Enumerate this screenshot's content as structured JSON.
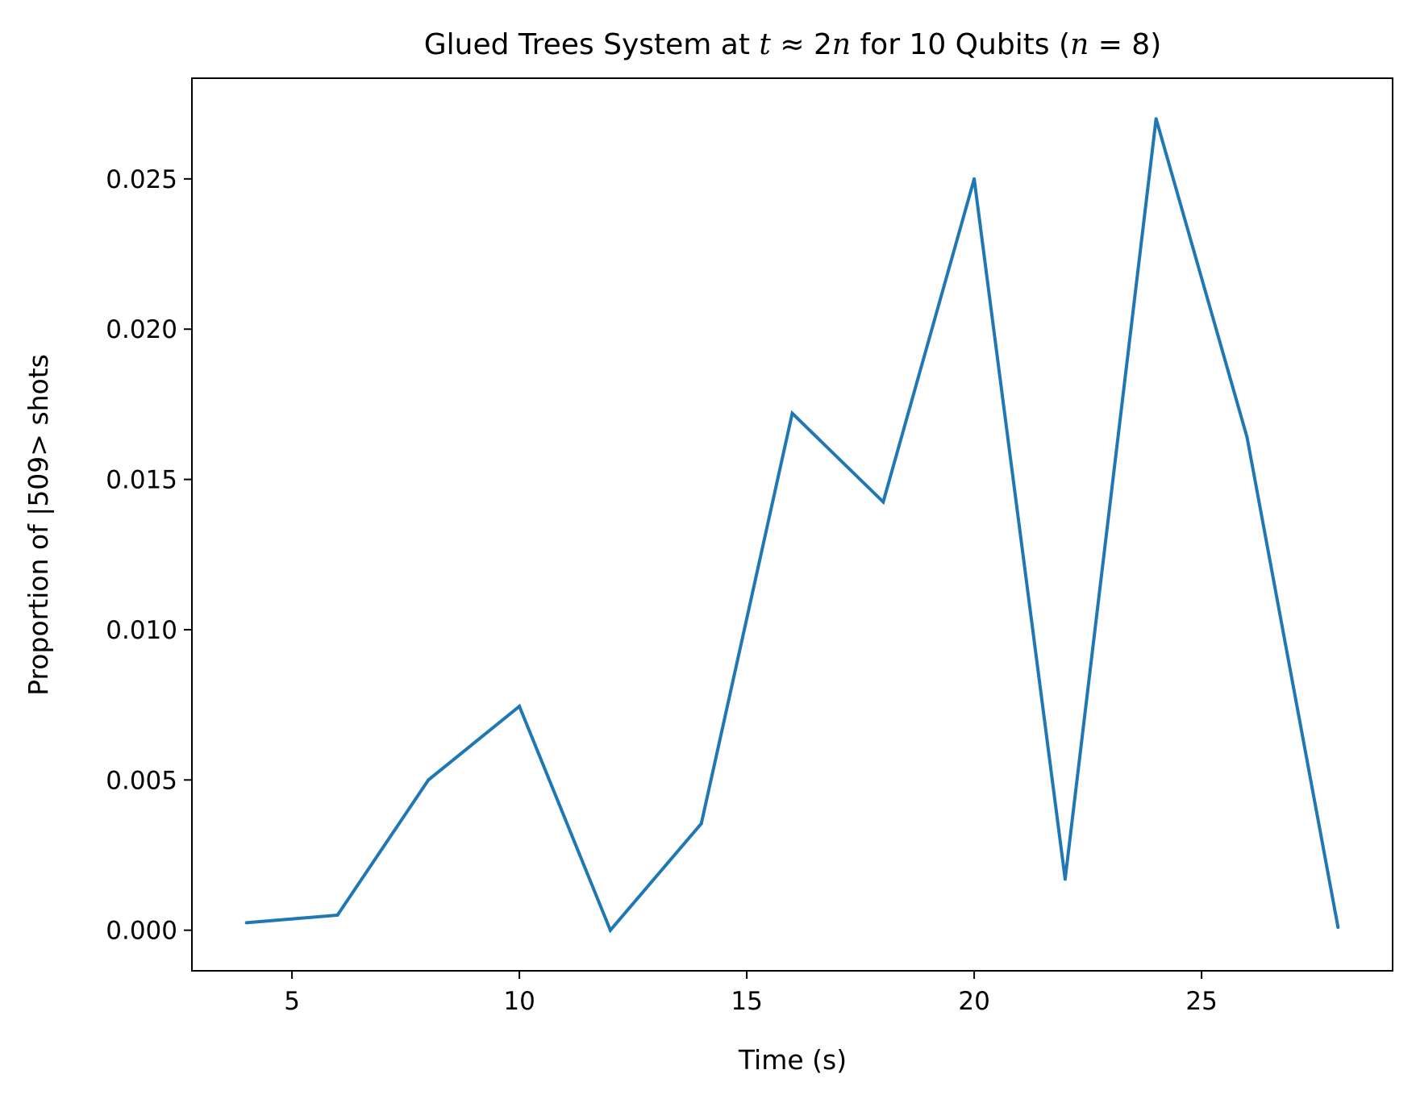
{
  "chart_data": {
    "type": "line",
    "title": {
      "prefix": "Glued Trees System at ",
      "t_var": "t",
      "approx": " ≈ 2",
      "n_var": "n",
      "middle": " for 10 Qubits (",
      "n_var2": "n",
      "suffix": " = 8)"
    },
    "xlabel": "Time (s)",
    "ylabel": "Proportion of |509> shots",
    "xlim": [
      2.8,
      29.2
    ],
    "ylim": [
      -0.00135,
      0.02835
    ],
    "xticks": [
      5,
      10,
      15,
      20,
      25
    ],
    "xtick_labels": [
      "5",
      "10",
      "15",
      "20",
      "25"
    ],
    "yticks": [
      0,
      0.005,
      0.01,
      0.015,
      0.02,
      0.025
    ],
    "ytick_labels": [
      "0.000",
      "0.005",
      "0.010",
      "0.015",
      "0.020",
      "0.025"
    ],
    "grid": false,
    "series": [
      {
        "color": "#1f77b4",
        "x": [
          4,
          6,
          8,
          10,
          12,
          14,
          16,
          18,
          20,
          22,
          24,
          26,
          28
        ],
        "y": [
          0.00025,
          0.0005,
          0.005,
          0.00745,
          0.0,
          0.00355,
          0.0172,
          0.01425,
          0.025,
          0.0017,
          0.027,
          0.0164,
          0.0001
        ]
      }
    ]
  }
}
